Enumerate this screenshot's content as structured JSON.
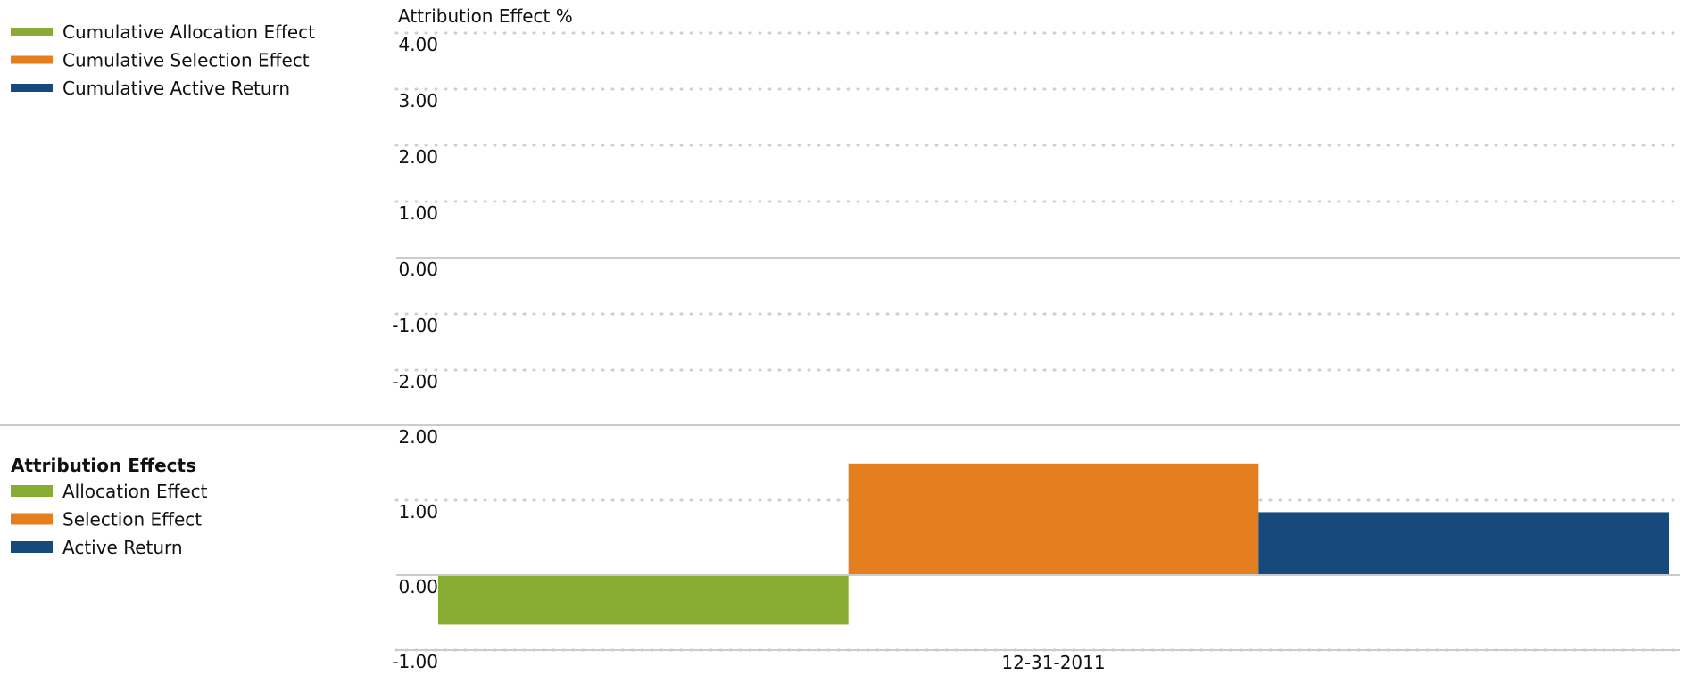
{
  "chart_data": [
    {
      "type": "line",
      "title": "",
      "ylabel": "Attribution Effect %",
      "ylim": [
        -2,
        4
      ],
      "y_ticks": [
        "4.00",
        "3.00",
        "2.00",
        "1.00",
        "0.00",
        "-1.00",
        "-2.00"
      ],
      "grid": true,
      "legend_position": "left",
      "series": [
        {
          "name": "Cumulative Allocation Effect",
          "color": "#88ab32",
          "values": []
        },
        {
          "name": "Cumulative Selection Effect",
          "color": "#e57e1e",
          "values": []
        },
        {
          "name": "Cumulative Active Return",
          "color": "#174a7c",
          "values": []
        }
      ]
    },
    {
      "type": "bar",
      "legend_title": "Attribution Effects",
      "categories": [
        "12-31-2011"
      ],
      "ylim": [
        -1,
        2
      ],
      "y_ticks": [
        "2.00",
        "1.00",
        "0.00",
        "-1.00"
      ],
      "grid": true,
      "legend_position": "left",
      "series": [
        {
          "name": "Allocation Effect",
          "color": "#88ab32",
          "values": [
            -0.66
          ]
        },
        {
          "name": "Selection Effect",
          "color": "#e57e1e",
          "values": [
            1.49
          ]
        },
        {
          "name": "Active Return",
          "color": "#174a7c",
          "values": [
            0.84
          ]
        }
      ]
    }
  ]
}
